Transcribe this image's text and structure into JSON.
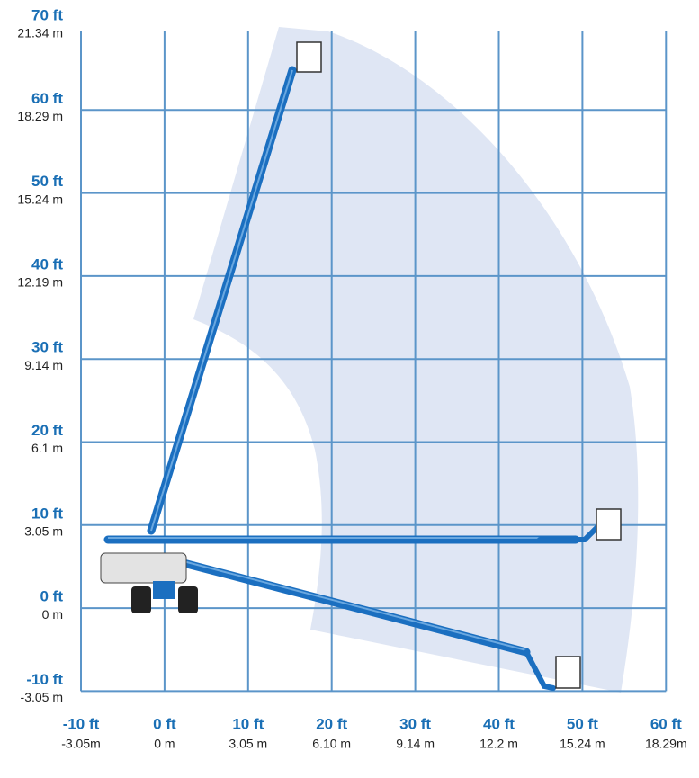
{
  "y_axis": {
    "ticks": [
      {
        "ft": "70 ft",
        "m": "21.34 m"
      },
      {
        "ft": "60 ft",
        "m": "18.29 m"
      },
      {
        "ft": "50 ft",
        "m": "15.24 m"
      },
      {
        "ft": "40 ft",
        "m": "12.19 m"
      },
      {
        "ft": "30 ft",
        "m": "9.14 m"
      },
      {
        "ft": "20 ft",
        "m": "6.1 m"
      },
      {
        "ft": "10 ft",
        "m": "3.05 m"
      },
      {
        "ft": "0 ft",
        "m": "0 m"
      },
      {
        "ft": "-10 ft",
        "m": "-3.05 m"
      }
    ]
  },
  "x_axis": {
    "ticks": [
      {
        "ft": "-10 ft",
        "m": "-3.05m"
      },
      {
        "ft": "0 ft",
        "m": "0 m"
      },
      {
        "ft": "10 ft",
        "m": "3.05 m"
      },
      {
        "ft": "20 ft",
        "m": "6.10 m"
      },
      {
        "ft": "30 ft",
        "m": "9.14 m"
      },
      {
        "ft": "40 ft",
        "m": "12.2 m"
      },
      {
        "ft": "50 ft",
        "m": "15.24 m"
      },
      {
        "ft": "60 ft",
        "m": "18.29m"
      }
    ]
  }
}
